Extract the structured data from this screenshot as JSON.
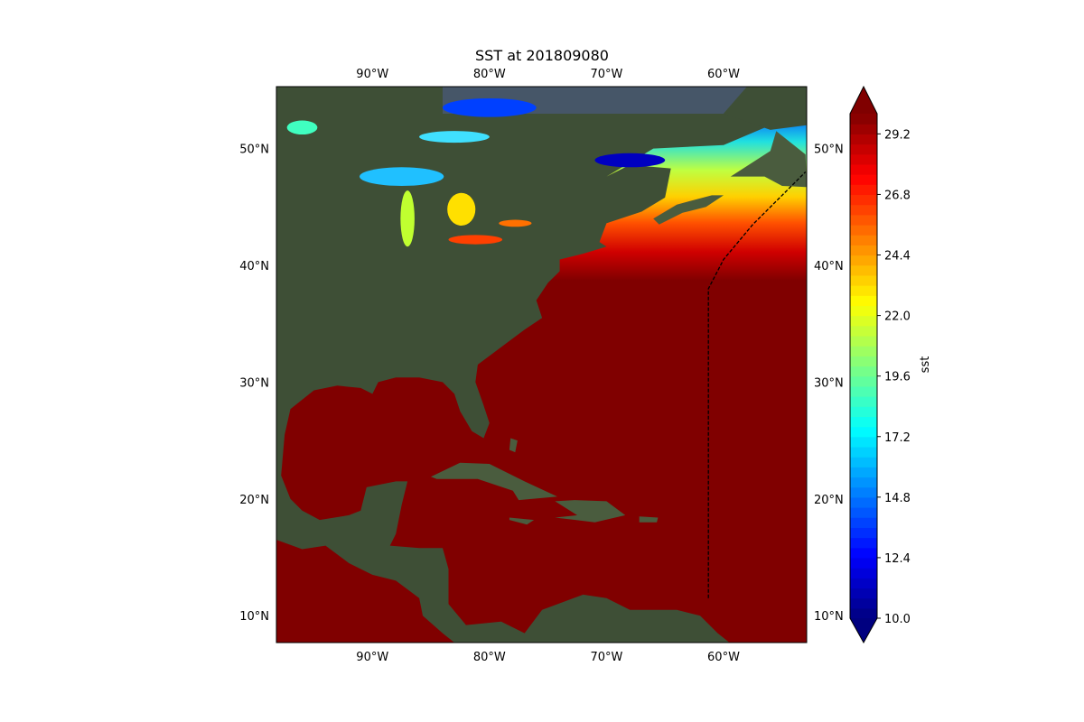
{
  "chart_data": {
    "type": "map",
    "title": "SST at 201809080",
    "projection": "PlateCarree",
    "basemap": "satellite imagery",
    "extent": {
      "lon": [
        -98.2,
        -52.9
      ],
      "lat": [
        7.7,
        55.3
      ]
    },
    "x_ticks": [
      {
        "value": -90,
        "label": "90°W"
      },
      {
        "value": -80,
        "label": "80°W"
      },
      {
        "value": -70,
        "label": "70°W"
      },
      {
        "value": -60,
        "label": "60°W"
      }
    ],
    "y_ticks": [
      {
        "value": 10,
        "label": "10°N"
      },
      {
        "value": 20,
        "label": "20°N"
      },
      {
        "value": 30,
        "label": "30°N"
      },
      {
        "value": 40,
        "label": "40°N"
      },
      {
        "value": 50,
        "label": "50°N"
      }
    ],
    "field": "sst",
    "colorbar": {
      "label": "sst",
      "colormap": "jet",
      "range": [
        10.0,
        30.0
      ],
      "extend": "both",
      "ticks": [
        "10.0",
        "12.4",
        "14.8",
        "17.2",
        "19.6",
        "22.0",
        "24.4",
        "26.8",
        "29.2"
      ]
    },
    "track": {
      "style": "dashed",
      "color": "#000000"
    }
  }
}
